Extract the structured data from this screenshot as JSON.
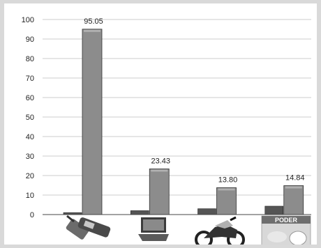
{
  "chart_data": {
    "type": "bar",
    "categories": [
      "mobile-phone",
      "laptop",
      "motorcycle",
      "poder-product"
    ],
    "series": [
      {
        "values": [
          1,
          2,
          3,
          4.3
        ]
      },
      {
        "values": [
          95.05,
          23.43,
          13.8,
          14.84
        ]
      }
    ],
    "data_labels": [
      "95.05",
      "23.43",
      "13.80",
      "14.84"
    ],
    "ylim": [
      0,
      100
    ],
    "yticks": [
      "0",
      "10",
      "20",
      "30",
      "40",
      "50",
      "60",
      "70",
      "80",
      "90",
      "100"
    ],
    "grid": true,
    "legend": "none",
    "category_icons": [
      "mobile-phone-icon",
      "laptop-icon",
      "motorcycle-icon",
      "poder-box-icon"
    ],
    "logo_text": "PODER",
    "colors": {
      "background": "#d9d9d9",
      "plot": "#ffffff",
      "grid": "#cccccc",
      "bar_small": "#555555",
      "bar_main": "#8c8c8c",
      "bar_main_top": "#b0b0b0"
    }
  }
}
